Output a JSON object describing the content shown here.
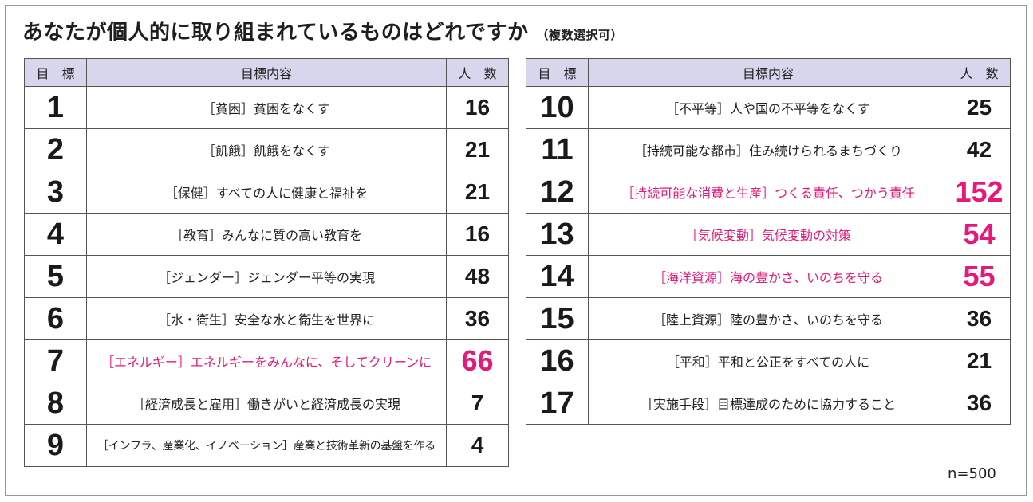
{
  "title": "あなたが個人的に取り組まれているものはどれですか",
  "subtitle": "（複数選択可）",
  "headers": {
    "goal": "目　標",
    "content": "目標内容",
    "count": "人　数"
  },
  "left_rows": [
    {
      "num": "1",
      "content": "［貧困］貧困をなくす",
      "count": "16",
      "highlight": false
    },
    {
      "num": "2",
      "content": "［飢餓］飢餓をなくす",
      "count": "21",
      "highlight": false
    },
    {
      "num": "3",
      "content": "［保健］すべての人に健康と福祉を",
      "count": "21",
      "highlight": false
    },
    {
      "num": "4",
      "content": "［教育］みんなに質の高い教育を",
      "count": "16",
      "highlight": false
    },
    {
      "num": "5",
      "content": "［ジェンダー］ジェンダー平等の実現",
      "count": "48",
      "highlight": false
    },
    {
      "num": "6",
      "content": "［水・衛生］安全な水と衛生を世界に",
      "count": "36",
      "highlight": false
    },
    {
      "num": "7",
      "content": "［エネルギー］エネルギーをみんなに、そしてクリーンに",
      "count": "66",
      "highlight": true
    },
    {
      "num": "8",
      "content": "［経済成長と雇用］働きがいと経済成長の実現",
      "count": "7",
      "highlight": false
    },
    {
      "num": "9",
      "content": "［インフラ、産業化、イノベーション］産業と技術革新の基盤を作る",
      "count": "4",
      "highlight": false
    }
  ],
  "right_rows": [
    {
      "num": "10",
      "content": "［不平等］人や国の不平等をなくす",
      "count": "25",
      "highlight": false
    },
    {
      "num": "11",
      "content": "［持続可能な都市］住み続けられるまちづくり",
      "count": "42",
      "highlight": false
    },
    {
      "num": "12",
      "content": "［持続可能な消費と生産］つくる責任、つかう責任",
      "count": "152",
      "highlight": true
    },
    {
      "num": "13",
      "content": "［気候変動］気候変動の対策",
      "count": "54",
      "highlight": true
    },
    {
      "num": "14",
      "content": "［海洋資源］海の豊かさ、いのちを守る",
      "count": "55",
      "highlight": true
    },
    {
      "num": "15",
      "content": "［陸上資源］陸の豊かさ、いのちを守る",
      "count": "36",
      "highlight": false
    },
    {
      "num": "16",
      "content": "［平和］平和と公正をすべての人に",
      "count": "21",
      "highlight": false
    },
    {
      "num": "17",
      "content": "［実施手段］目標達成のために協力すること",
      "count": "36",
      "highlight": false
    }
  ],
  "footnote": "n=500",
  "colors": {
    "header_bg": "#d8d6ec",
    "highlight": "#e4197a"
  }
}
